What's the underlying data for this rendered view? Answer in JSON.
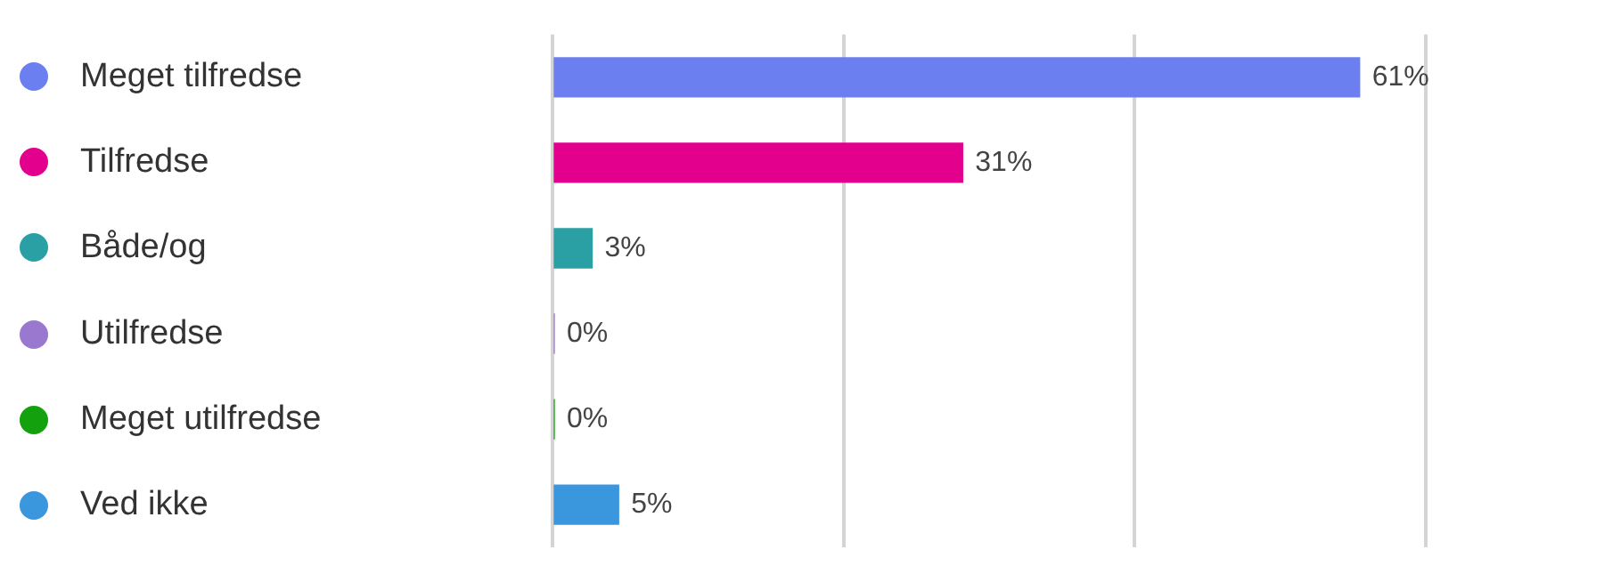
{
  "chart_data": {
    "type": "bar",
    "orientation": "horizontal",
    "categories": [
      "Meget tilfredse",
      "Tilfredse",
      "Både/og",
      "Utilfredse",
      "Meget utilfredse",
      "Ved ikke"
    ],
    "values": [
      61,
      31,
      3,
      0,
      0,
      5
    ],
    "colors": [
      "#6b7ff0",
      "#e3008c",
      "#2aa0a4",
      "#9a78cf",
      "#13a10e",
      "#3a96dd"
    ],
    "value_labels": [
      "61%",
      "31%",
      "3%",
      "0%",
      "0%",
      "5%"
    ],
    "xlim": [
      0,
      66
    ],
    "xticks": [
      {
        "value": 0,
        "label": null
      },
      {
        "value": 22,
        "label": null
      },
      {
        "value": 44,
        "label": null
      },
      {
        "value": 66,
        "label": null
      }
    ],
    "grid": "x",
    "tick_labels": "y"
  }
}
